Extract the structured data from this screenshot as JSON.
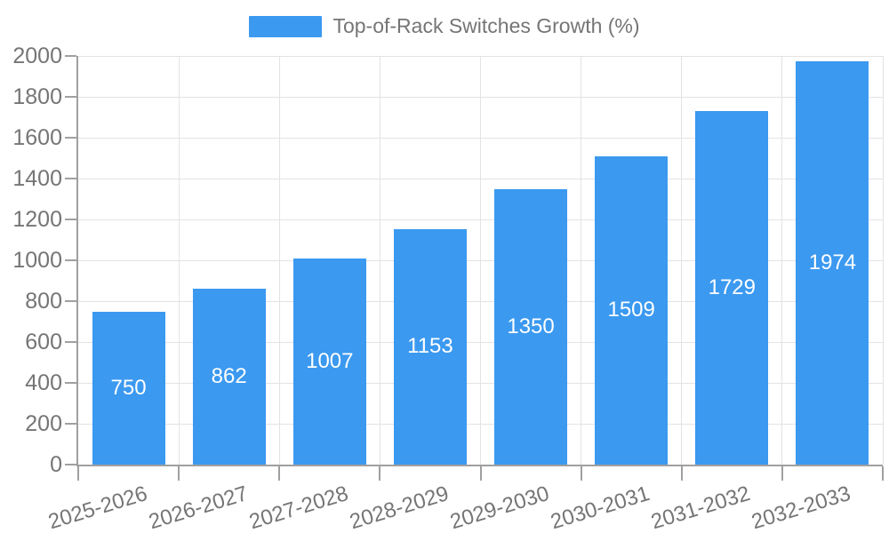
{
  "legend": {
    "label": "Top-of-Rack Switches Growth (%)"
  },
  "colors": {
    "bar": "#3b99f0",
    "grid": "#e3e3e3",
    "axis": "#a0a0a0",
    "tick_text": "#757575",
    "value_label": "#ffffff",
    "background": "#ffffff"
  },
  "chart_data": {
    "type": "bar",
    "title": "Top-of-Rack Switches Growth (%)",
    "categories": [
      "2025-2026",
      "2026-2027",
      "2027-2028",
      "2028-2029",
      "2029-2030",
      "2030-2031",
      "2031-2032",
      "2032-2033"
    ],
    "series": [
      {
        "name": "Top-of-Rack Switches Growth (%)",
        "values": [
          750,
          862,
          1007,
          1153,
          1350,
          1509,
          1729,
          1974
        ]
      }
    ],
    "values": [
      750,
      862,
      1007,
      1153,
      1350,
      1509,
      1729,
      1974
    ],
    "value_label_position": "inside-center",
    "xlabel": "",
    "ylabel": "",
    "ylim": [
      0,
      2000
    ],
    "yticks": [
      0,
      200,
      400,
      600,
      800,
      1000,
      1200,
      1400,
      1600,
      1800,
      2000
    ],
    "grid": true,
    "x_label_rotation_deg": -17,
    "legend_position": "top-center"
  }
}
